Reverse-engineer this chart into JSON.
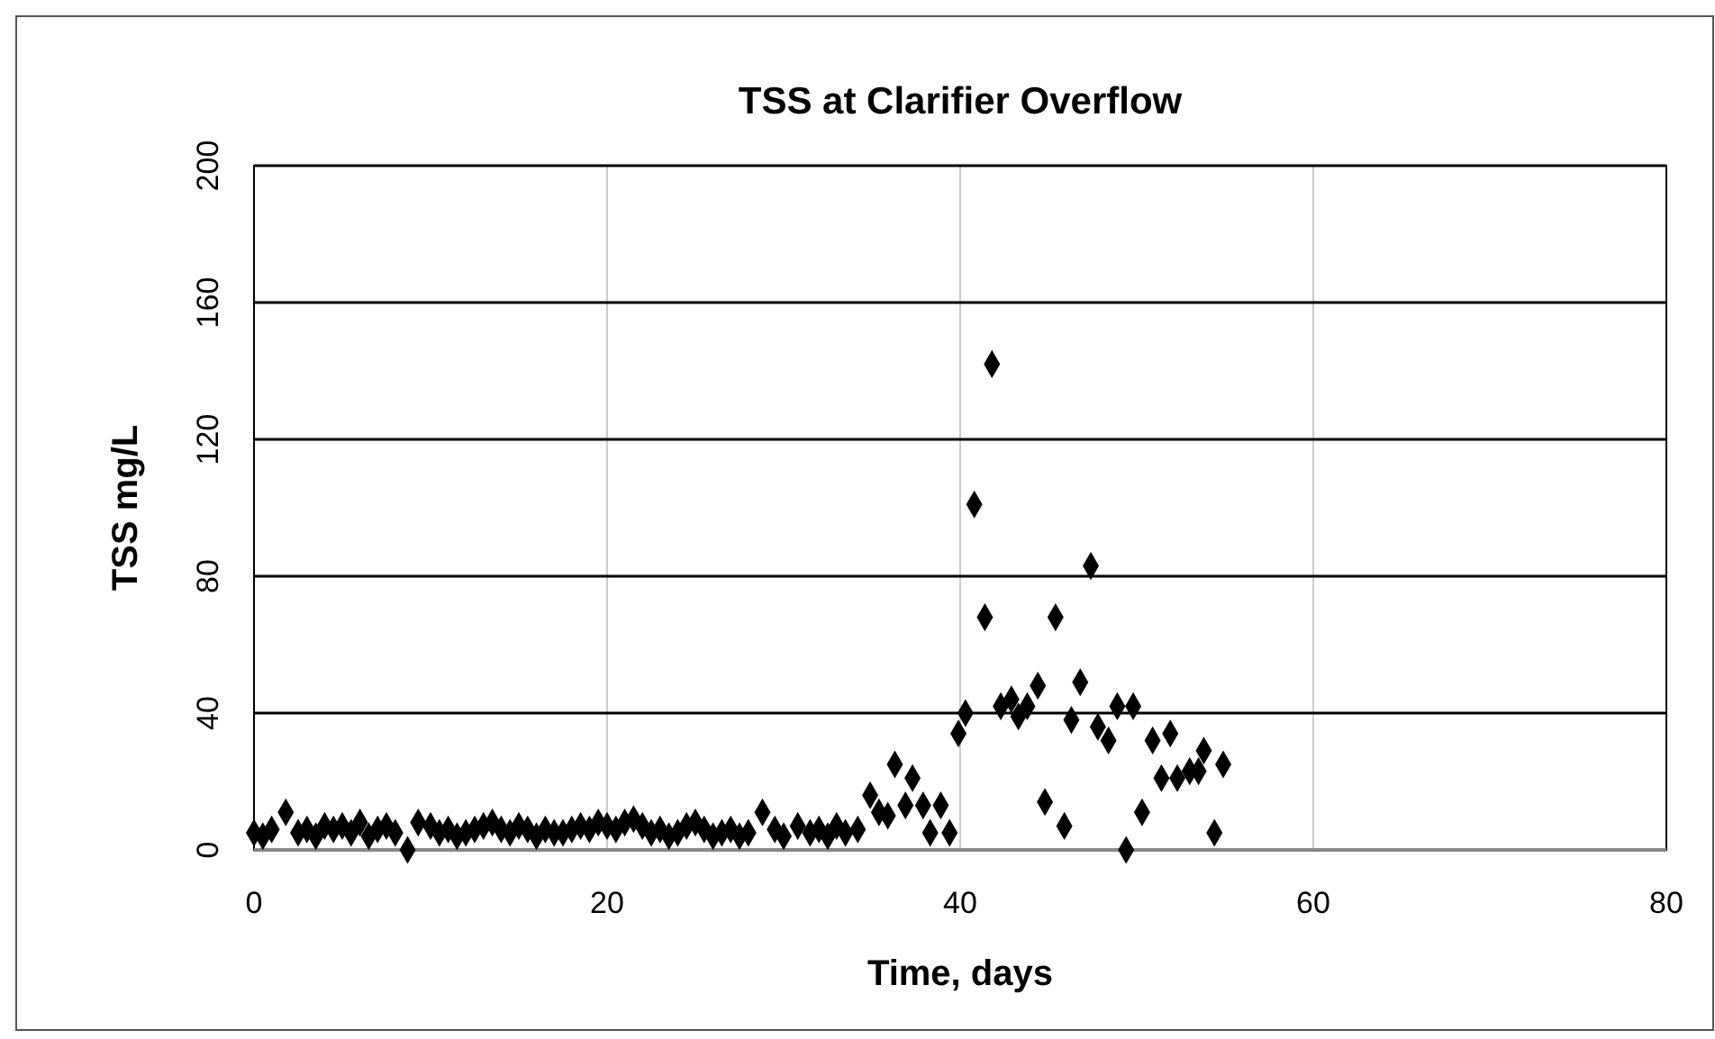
{
  "chart_data": {
    "type": "scatter",
    "title": "TSS at Clarifier Overflow",
    "xlabel": "Time, days",
    "ylabel": "TSS mg/L",
    "xlim": [
      0,
      80
    ],
    "xticks": [
      0,
      20,
      40,
      60,
      80
    ],
    "ylim": [
      0,
      200
    ],
    "yticks": [
      0,
      40,
      80,
      120,
      160,
      200
    ],
    "grid": true,
    "marker": "diamond",
    "series": [
      {
        "color": "#000000",
        "x": [
          0,
          0.5,
          1,
          1.8,
          2.5,
          3,
          3.5,
          4,
          4.5,
          5,
          5.5,
          6,
          6.5,
          7,
          7.5,
          8,
          8.7,
          9.3,
          10,
          10.5,
          11,
          11.5,
          12,
          12.5,
          13,
          13.5,
          14,
          14.5,
          15,
          15.5,
          16,
          16.5,
          17,
          17.5,
          18,
          18.5,
          19,
          19.5,
          20,
          20.5,
          21,
          21.5,
          22,
          22.5,
          23,
          23.5,
          24,
          24.5,
          25,
          25.5,
          26,
          26.5,
          27,
          27.5,
          28,
          28.8,
          29.5,
          30,
          30.8,
          31.5,
          32,
          32.5,
          33,
          33.5,
          34.2,
          34.9,
          35.4,
          35.9,
          36.3,
          36.9,
          37.3,
          37.9,
          38.3,
          38.9,
          39.4,
          39.9,
          40.3,
          40.8,
          41.4,
          41.8,
          42.3,
          42.9,
          43.3,
          43.8,
          44.4,
          44.8,
          45.4,
          45.9,
          46.3,
          46.8,
          47.4,
          47.8,
          48.4,
          48.9,
          49.4,
          49.8,
          50.3,
          50.9,
          51.4,
          51.9,
          52.3,
          53.0,
          53.5,
          53.8,
          54.4,
          54.9
        ],
        "values": [
          5,
          4,
          6,
          11,
          5,
          6,
          4,
          7,
          6,
          7,
          5,
          8,
          4,
          6,
          7,
          5,
          0,
          8,
          7,
          5,
          6,
          4,
          5,
          6,
          7,
          8,
          6,
          5,
          7,
          6,
          4,
          6,
          5,
          5,
          6,
          7,
          6,
          8,
          7,
          6,
          8,
          9,
          7,
          5,
          6,
          4,
          5,
          7,
          8,
          6,
          4,
          5,
          6,
          4,
          5,
          11,
          6,
          4,
          7,
          5,
          6,
          4,
          7,
          5,
          6,
          16,
          11,
          10,
          25,
          13,
          21,
          13,
          5,
          13,
          5,
          34,
          40,
          101,
          68,
          142,
          42,
          44,
          39,
          42,
          48,
          14,
          68,
          7,
          38,
          49,
          83,
          36,
          32,
          42,
          0,
          42,
          11,
          32,
          21,
          34,
          21,
          23,
          23,
          29,
          5,
          25
        ]
      }
    ]
  }
}
